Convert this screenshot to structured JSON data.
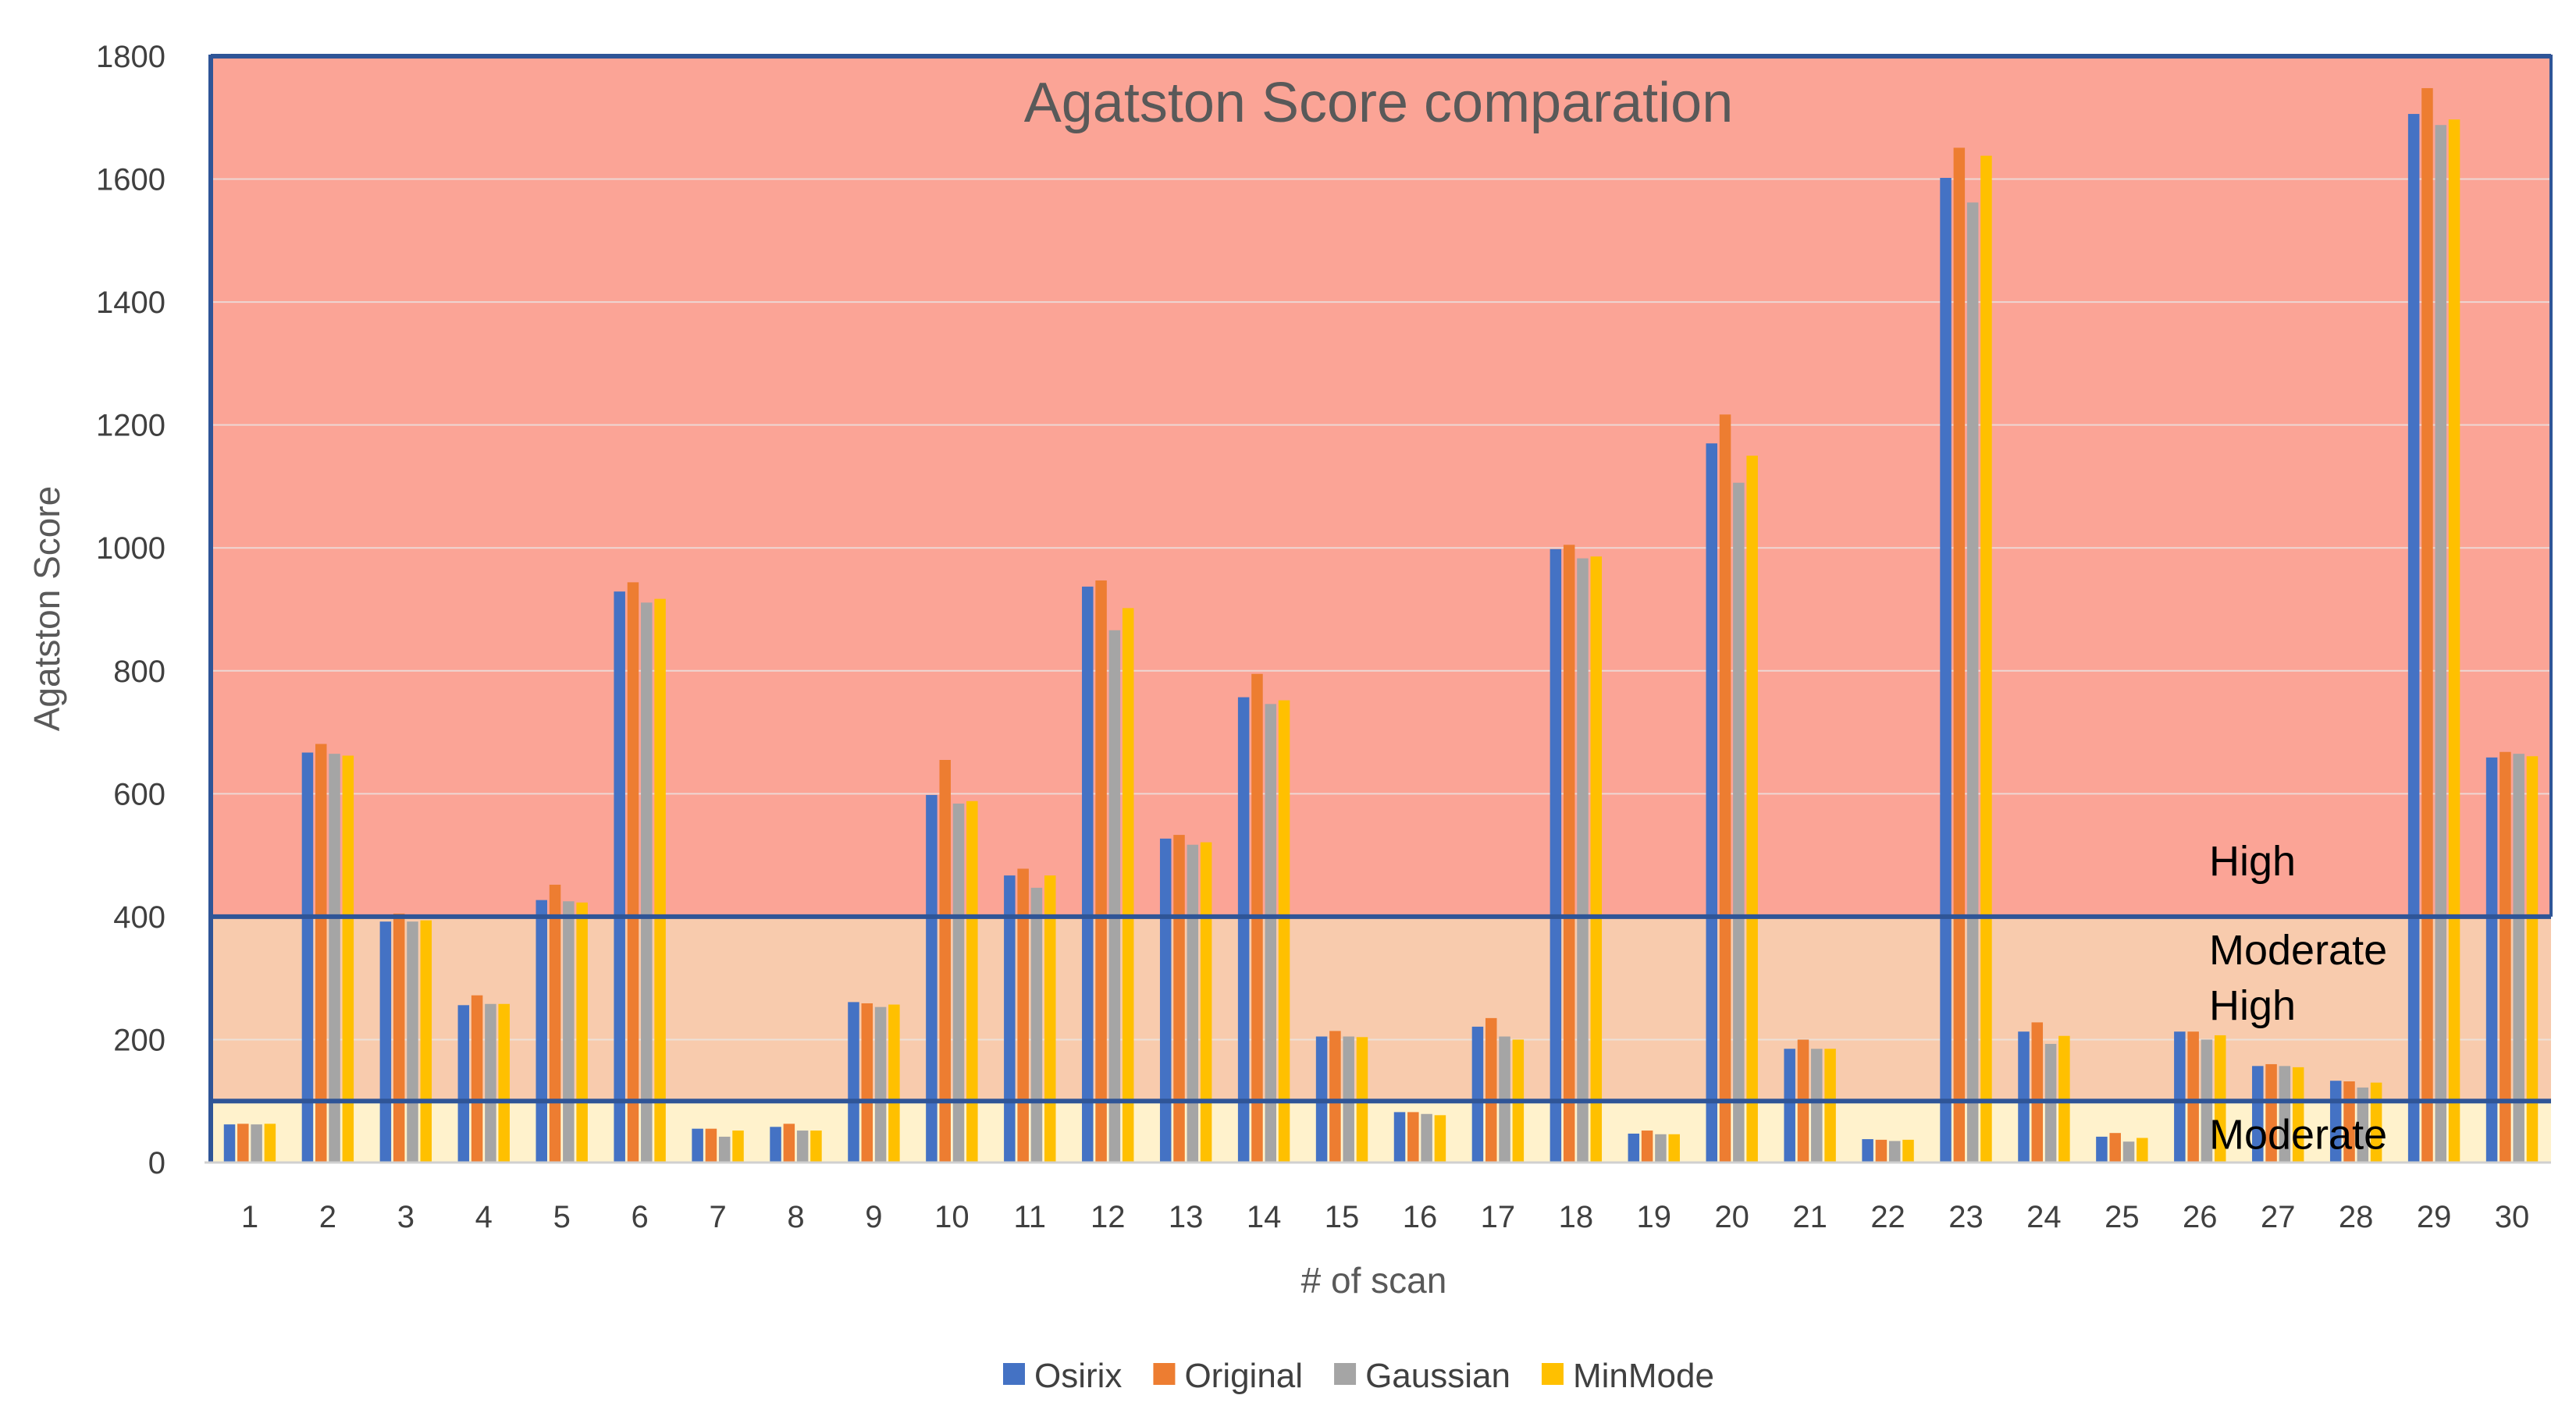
{
  "chart_data": {
    "type": "bar",
    "title": "Agatston Score comparation",
    "xlabel": "# of scan",
    "ylabel": "Agatston Score",
    "ylim": [
      0,
      1800
    ],
    "yticks": [
      0,
      200,
      400,
      600,
      800,
      1000,
      1200,
      1400,
      1600,
      1800
    ],
    "grid": true,
    "legend_position": "bottom",
    "categories": [
      "1",
      "2",
      "3",
      "4",
      "5",
      "6",
      "7",
      "8",
      "9",
      "10",
      "11",
      "12",
      "13",
      "14",
      "15",
      "16",
      "17",
      "18",
      "19",
      "20",
      "21",
      "22",
      "23",
      "24",
      "25",
      "26",
      "27",
      "28",
      "29",
      "30"
    ],
    "series": [
      {
        "name": "Osirix",
        "color": "#4472C4",
        "values": [
          62,
          667,
          392,
          256,
          427,
          929,
          55,
          58,
          261,
          598,
          467,
          937,
          527,
          757,
          205,
          82,
          221,
          998,
          47,
          1170,
          185,
          38,
          1602,
          213,
          42,
          213,
          157,
          133,
          1706,
          659
        ]
      },
      {
        "name": "Original",
        "color": "#ED7D31",
        "values": [
          63,
          681,
          405,
          272,
          452,
          944,
          55,
          63,
          259,
          655,
          478,
          947,
          533,
          795,
          214,
          82,
          235,
          1005,
          52,
          1217,
          200,
          37,
          1651,
          228,
          48,
          213,
          160,
          132,
          1748,
          668
        ]
      },
      {
        "name": "Gaussian",
        "color": "#A5A5A5",
        "values": [
          62,
          665,
          392,
          258,
          425,
          911,
          42,
          52,
          253,
          584,
          447,
          866,
          517,
          746,
          205,
          79,
          205,
          983,
          46,
          1106,
          185,
          35,
          1562,
          193,
          34,
          200,
          157,
          122,
          1688,
          665
        ]
      },
      {
        "name": "MinMode",
        "color": "#FFC000",
        "values": [
          63,
          662,
          394,
          258,
          423,
          917,
          52,
          52,
          257,
          588,
          467,
          902,
          521,
          752,
          204,
          77,
          200,
          986,
          46,
          1150,
          185,
          37,
          1638,
          206,
          40,
          207,
          155,
          130,
          1697,
          661
        ]
      }
    ],
    "bands": [
      {
        "from": 0,
        "to": 100,
        "color": "#FFF2CC"
      },
      {
        "from": 100,
        "to": 400,
        "color": "#F8CBAD"
      },
      {
        "from": 400,
        "to": 1800,
        "color": "#FBA496"
      }
    ],
    "band_lines": [
      100,
      400,
      1800
    ],
    "band_line_color": "#2F5597",
    "band_labels": [
      {
        "text": "High",
        "y": 490
      },
      {
        "text": "Moderate",
        "y": 345
      },
      {
        "text": "High",
        "y": 255
      },
      {
        "text": "Moderate",
        "y": 45
      }
    ]
  }
}
